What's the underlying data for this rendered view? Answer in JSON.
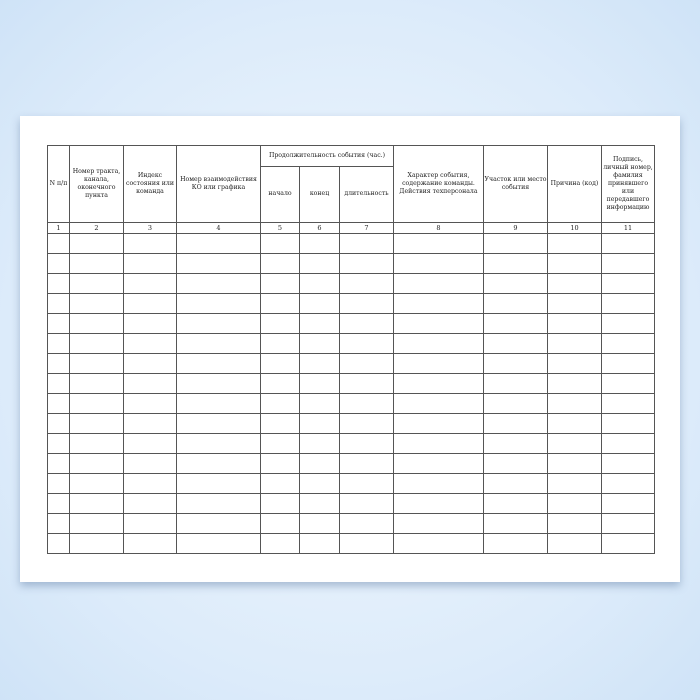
{
  "headers": {
    "c1": "N п/п",
    "c2": "Номер тракта, канала, оконечного пункта",
    "c3": "Индекс состояния или команда",
    "c4": "Номер взаимодействия КО или графика",
    "group": "Продолжительность события (час.)",
    "c5": "начало",
    "c6": "конец",
    "c7": "длительность",
    "c8": "Характер события, содержание команды. Действия техперсонала",
    "c9": "Участок или место события",
    "c10": "Причина (код)",
    "c11": "Подпись, личный номер, фамилия принявшего или передавшего информацию"
  },
  "numbers": [
    "1",
    "2",
    "3",
    "4",
    "5",
    "6",
    "7",
    "8",
    "9",
    "10",
    "11"
  ],
  "empty_rows": 16
}
